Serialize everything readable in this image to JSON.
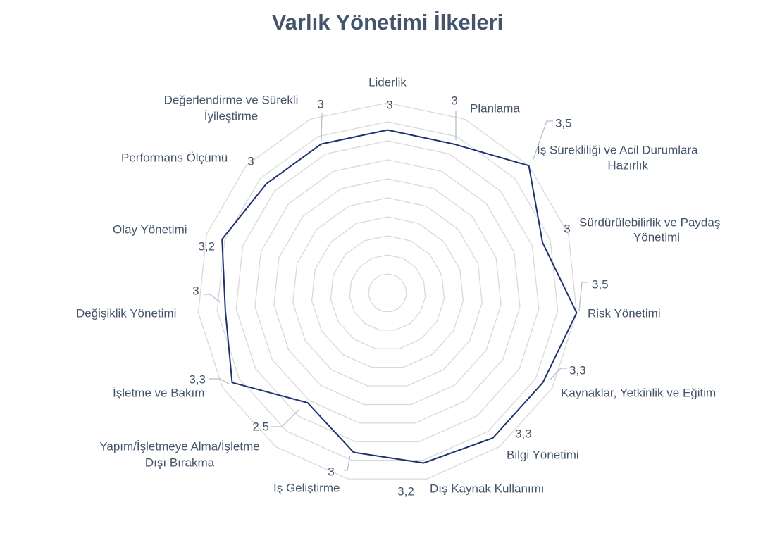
{
  "chart_data": {
    "type": "radar",
    "title": "Varlık Yönetimi İlkeleri",
    "categories": [
      "Liderlik",
      "Planlama",
      "İş Sürekliliği ve Acil Durumlara Hazırlık",
      "Sürdürülebilirlik ve Paydaş Yönetimi",
      "Risk Yönetimi",
      "Kaynaklar, Yetkinlik ve Eğitim",
      "Bilgi Yönetimi",
      "Dış Kaynak Kullanımı",
      "İş Geliştirme",
      "Yapım/İşletmeye Alma/İşletme Dışı Bırakma",
      "İşletme ve Bakım",
      "Değişiklik Yönetimi",
      "Olay Yönetimi",
      "Performans Ölçümü",
      "Değerlendirme ve Sürekli İyileştirme"
    ],
    "values": [
      3,
      3,
      3.5,
      3,
      3.5,
      3.3,
      3.3,
      3.2,
      3,
      2.5,
      3.3,
      3,
      3.2,
      3,
      3
    ],
    "data_labels": [
      "3",
      "3",
      "3,5",
      "3",
      "3,5",
      "3,3",
      "3,3",
      "3,2",
      "3",
      "2,5",
      "3,3",
      "3",
      "3,2",
      "3",
      "3"
    ],
    "rlim": [
      0,
      3.5
    ],
    "grid_levels": 10,
    "legend": false,
    "colors": {
      "series": "#1f3170",
      "grid": "#d9d9d9",
      "leader": "#b4bfce",
      "label": "#44546a",
      "title": "#44546a"
    }
  }
}
